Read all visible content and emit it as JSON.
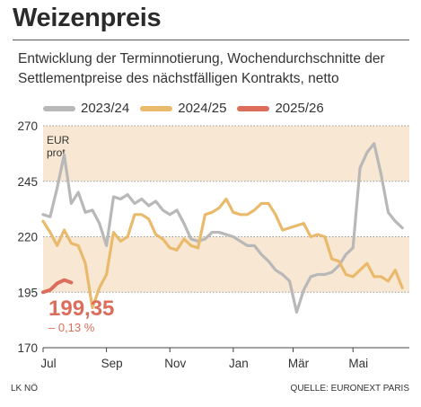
{
  "title": "Weizenpreis",
  "subtitle": "Entwicklung der Terminnotierung, Wochendurchschnitte der Settlementpreise des nächstfälligen Kontrakts, netto",
  "footer": {
    "left": "LK NÖ",
    "right": "QUELLE: EURONEXT PARIS"
  },
  "chart_data": {
    "type": "line",
    "unit_label": "EUR\nprot",
    "ylim": [
      170,
      270
    ],
    "yticks": [
      170,
      195,
      220,
      245,
      270
    ],
    "xlim": [
      0,
      52
    ],
    "xticks": [
      {
        "label": "Jul",
        "x": 0
      },
      {
        "label": "Sep",
        "x": 9
      },
      {
        "label": "Nov",
        "x": 18
      },
      {
        "label": "Jan",
        "x": 27
      },
      {
        "label": "Mär",
        "x": 35.5
      },
      {
        "label": "Mai",
        "x": 44
      }
    ],
    "bands": [
      [
        195,
        220
      ],
      [
        245,
        270
      ]
    ],
    "colors": {
      "band": "#f8e8d3",
      "grid": "#999999",
      "2023/24": "#b8b8b8",
      "2024/25": "#e9ba6c",
      "2025/26": "#dc6d5b"
    },
    "series": [
      {
        "name": "2023/24",
        "values": [
          230,
          229,
          242,
          257,
          235,
          240,
          231,
          232,
          226,
          216,
          238,
          237,
          239,
          235,
          237,
          234,
          236,
          232,
          230,
          232,
          226,
          219,
          218,
          219,
          222,
          222,
          221,
          220,
          218,
          216,
          216,
          212,
          209,
          205,
          203,
          200,
          186,
          196,
          202,
          203,
          203,
          204,
          207,
          212,
          215,
          251,
          258,
          262,
          248,
          231,
          227,
          224
        ]
      },
      {
        "name": "2024/25",
        "values": [
          227,
          222,
          216,
          223,
          217,
          216,
          208,
          188,
          197,
          203,
          222,
          218,
          220,
          230,
          230,
          228,
          221,
          219,
          215,
          214,
          219,
          216,
          215,
          230,
          231,
          233,
          237,
          231,
          230,
          230,
          232,
          235,
          235,
          230,
          223,
          224,
          225,
          226,
          220,
          221,
          220,
          210,
          209,
          203,
          202,
          205,
          208,
          202,
          202,
          200,
          205,
          197
        ]
      },
      {
        "name": "2025/26",
        "values": [
          195,
          196,
          199,
          200.5,
          199.35
        ]
      }
    ],
    "annotation": {
      "value": "199,35",
      "change": "– 0,13 %"
    }
  }
}
